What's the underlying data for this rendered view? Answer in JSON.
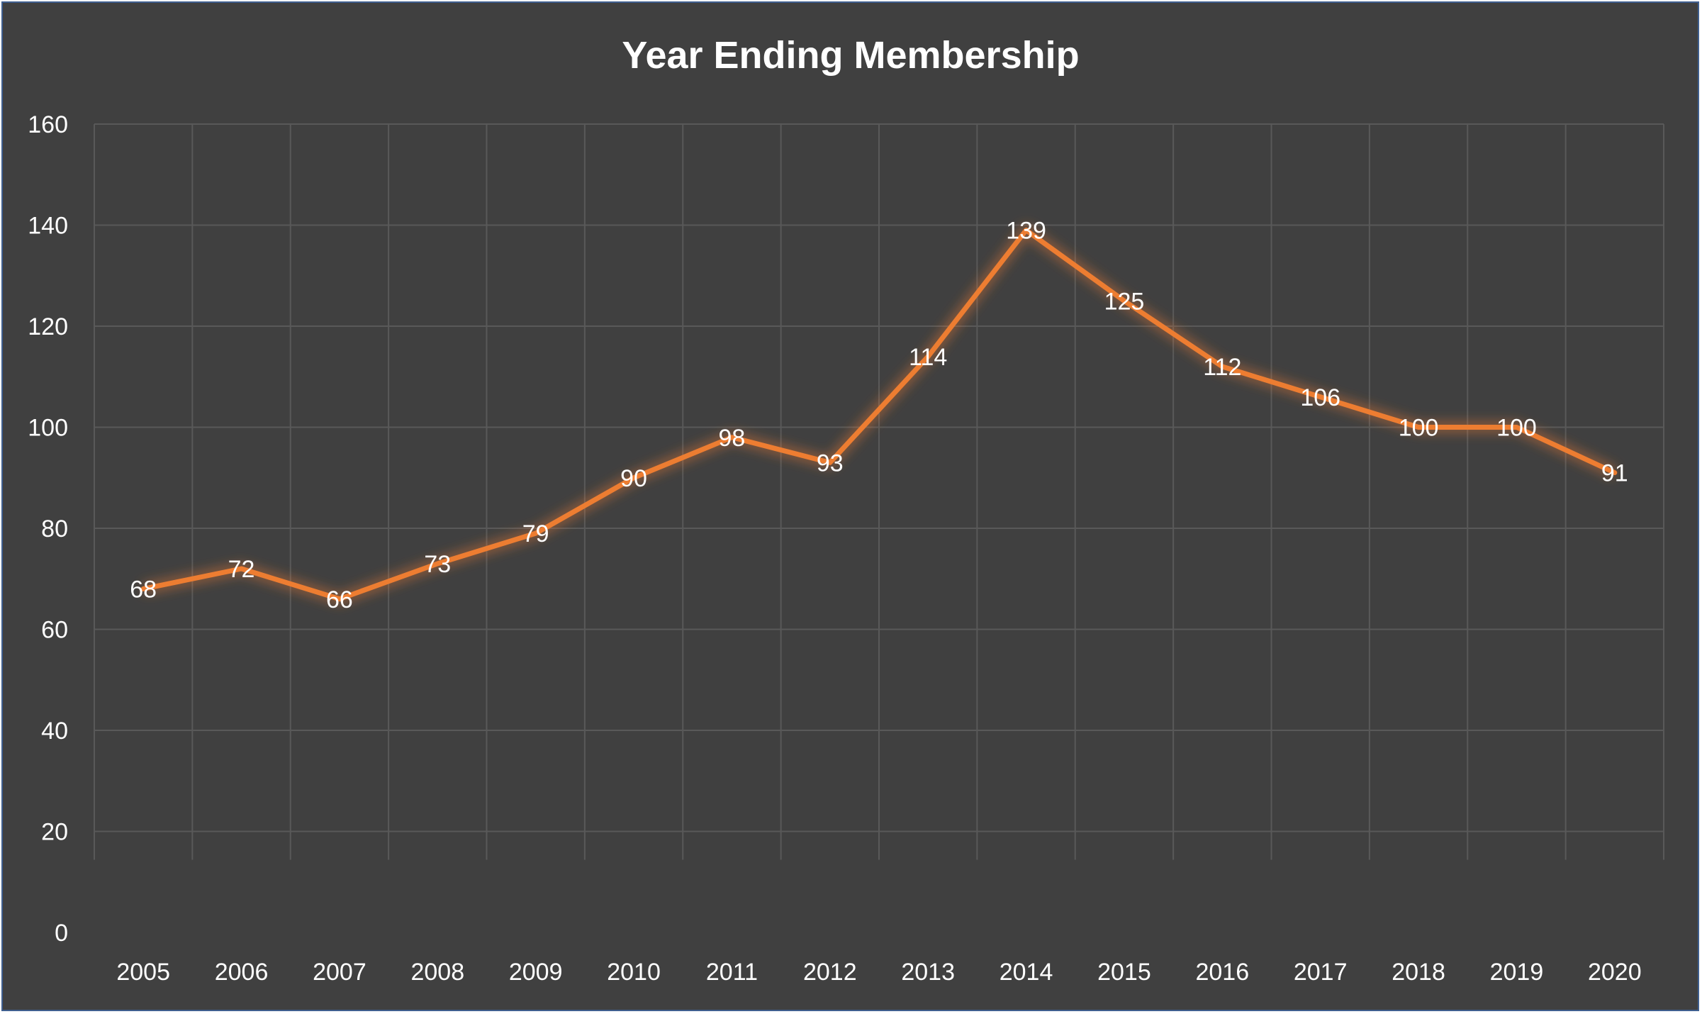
{
  "chart_data": {
    "type": "line",
    "title": "Year Ending Membership",
    "xlabel": "",
    "ylabel": "",
    "categories": [
      "2005",
      "2006",
      "2007",
      "2008",
      "2009",
      "2010",
      "2011",
      "2012",
      "2013",
      "2014",
      "2015",
      "2016",
      "2017",
      "2018",
      "2019",
      "2020"
    ],
    "series": [
      {
        "values": [
          68,
          72,
          66,
          73,
          79,
          90,
          98,
          93,
          114,
          139,
          125,
          112,
          106,
          100,
          100,
          91
        ],
        "color": "#ed7d31"
      }
    ],
    "ylim": [
      0,
      160
    ],
    "yticks": [
      0,
      20,
      40,
      60,
      80,
      100,
      120,
      140,
      160
    ],
    "grid": true,
    "legend": "none",
    "data_labels": true,
    "colors": {
      "background": "#404040",
      "gridline": "#595959",
      "text": "#ffffff",
      "line": "#ed7d31"
    }
  }
}
